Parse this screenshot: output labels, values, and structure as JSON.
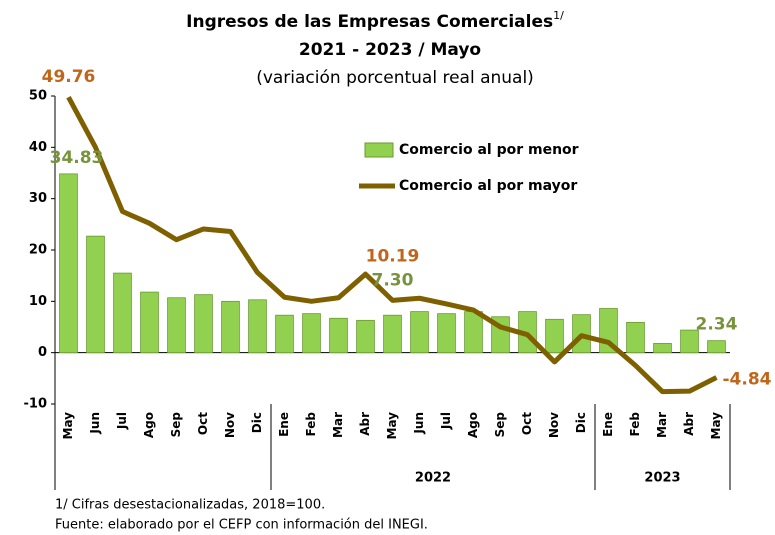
{
  "chart_data": {
    "type": "bar_line",
    "title": "Ingresos de las Empresas Comerciales",
    "title_superscript": "1/",
    "title_line2": "2021 - 2023 / Mayo",
    "subtitle": "(variación porcentual real anual)",
    "categories": [
      "May",
      "Jun",
      "Jul",
      "Ago",
      "Sep",
      "Oct",
      "Nov",
      "Dic",
      "Ene",
      "Feb",
      "Mar",
      "Abr",
      "May",
      "Jun",
      "Jul",
      "Ago",
      "Sep",
      "Oct",
      "Nov",
      "Dic",
      "Ene",
      "Feb",
      "Mar",
      "Abr",
      "May"
    ],
    "x_groups": [
      {
        "label": null,
        "count": 8
      },
      {
        "label": "2022",
        "count": 12
      },
      {
        "label": "2023",
        "count": 5
      }
    ],
    "series": [
      {
        "name": "Comercio al por menor",
        "type": "bar",
        "color": "#92d050",
        "label_color": "#77933c",
        "values": [
          34.83,
          22.7,
          15.5,
          11.8,
          10.7,
          11.3,
          10.0,
          10.3,
          7.3,
          7.6,
          6.7,
          6.3,
          7.3,
          8.0,
          7.6,
          8.0,
          7.0,
          8.0,
          6.5,
          7.4,
          8.6,
          5.9,
          1.8,
          4.4,
          2.34
        ],
        "value_labels": [
          "34.83",
          null,
          null,
          null,
          null,
          null,
          null,
          null,
          null,
          null,
          null,
          null,
          "7.30",
          null,
          null,
          null,
          null,
          null,
          null,
          null,
          null,
          null,
          null,
          null,
          "2.34"
        ]
      },
      {
        "name": "Comercio al por mayor",
        "type": "line",
        "color": "#7f6000",
        "label_color": "#c0661a",
        "values": [
          49.76,
          40.0,
          27.5,
          25.2,
          22.0,
          24.1,
          23.6,
          15.6,
          10.8,
          10.0,
          10.7,
          15.3,
          10.19,
          10.6,
          9.5,
          8.3,
          5.0,
          3.5,
          -1.8,
          3.3,
          2.0,
          -2.5,
          -7.6,
          -7.5,
          -4.84
        ],
        "value_labels": [
          "49.76",
          null,
          null,
          null,
          null,
          null,
          null,
          null,
          null,
          null,
          null,
          null,
          "10.19",
          null,
          null,
          null,
          null,
          null,
          null,
          null,
          null,
          null,
          null,
          null,
          "-4.84"
        ]
      }
    ],
    "ylim": [
      -10,
      50
    ],
    "yticks": [
      -10,
      0,
      10,
      20,
      30,
      40,
      50
    ],
    "notes": [
      "1/ Cifras desestacionalizadas, 2018=100.",
      "Fuente: elaborado por el CEFP con información del INEGI."
    ]
  }
}
